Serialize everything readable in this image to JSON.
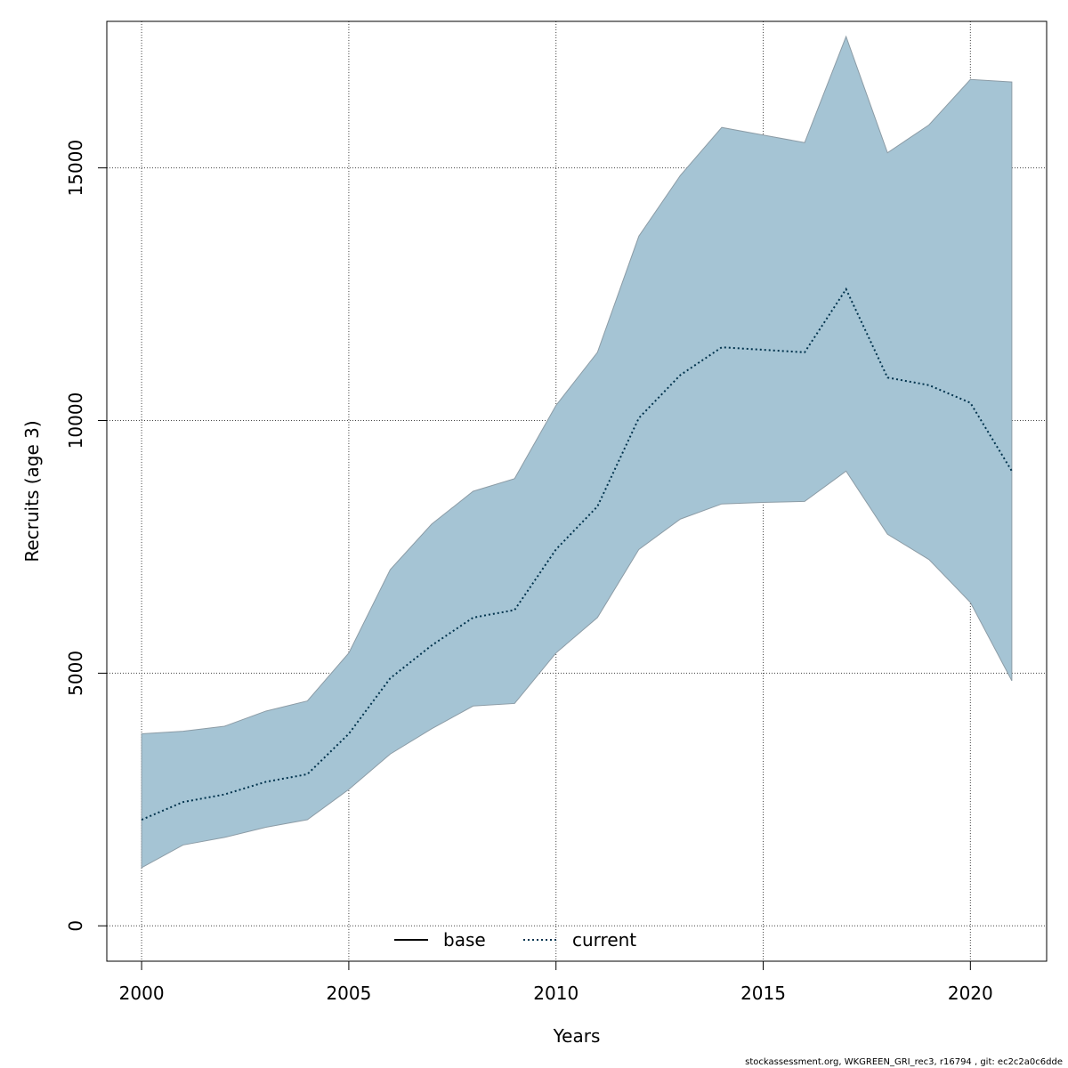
{
  "chart_data": {
    "type": "area",
    "title": "",
    "xlabel": "Years",
    "ylabel": "Recruits (age 3)",
    "xlim": [
      1999.16,
      2021.84
    ],
    "ylim": [
      -700,
      17900
    ],
    "x_ticks": [
      2000,
      2005,
      2010,
      2015,
      2020
    ],
    "y_ticks": [
      0,
      5000,
      10000,
      15000
    ],
    "grid": true,
    "x": [
      2000,
      2001,
      2002,
      2003,
      2004,
      2005,
      2006,
      2007,
      2008,
      2009,
      2010,
      2011,
      2012,
      2013,
      2014,
      2015,
      2016,
      2017,
      2018,
      2019,
      2020,
      2021
    ],
    "series": [
      {
        "name": "current",
        "line_style": "dotted",
        "values": [
          2100,
          2450,
          2600,
          2850,
          3000,
          3800,
          4900,
          5550,
          6100,
          6250,
          7450,
          8300,
          10050,
          10900,
          11450,
          11400,
          11350,
          12600,
          10850,
          10700,
          10350,
          9000
        ]
      }
    ],
    "band": {
      "lower": [
        1150,
        1600,
        1750,
        1950,
        2100,
        2700,
        3400,
        3900,
        4350,
        4400,
        5400,
        6100,
        7450,
        8050,
        8350,
        8380,
        8400,
        9000,
        7750,
        7250,
        6400,
        4850
      ],
      "upper": [
        3800,
        3850,
        3950,
        4250,
        4450,
        5400,
        7050,
        7950,
        8600,
        8850,
        10300,
        11350,
        13650,
        14850,
        15800,
        15650,
        15500,
        17600,
        15300,
        15850,
        16750,
        16700
      ],
      "color": "#a5c4d4"
    },
    "legend": {
      "placement": "bottom-center",
      "entries": [
        {
          "label": "base",
          "line_style": "solid",
          "color": "#000000"
        },
        {
          "label": "current",
          "line_style": "dotted",
          "color": "#00334d"
        }
      ]
    },
    "colors": {
      "band_fill": "#a5c4d4",
      "band_edge": "#8c9ca6",
      "current_line": "#00334d",
      "grid": "#444444"
    }
  },
  "footer": {
    "text": "stockassessment.org, WKGREEN_GRI_rec3, r16794 , git: ec2c2a0c6dde"
  }
}
